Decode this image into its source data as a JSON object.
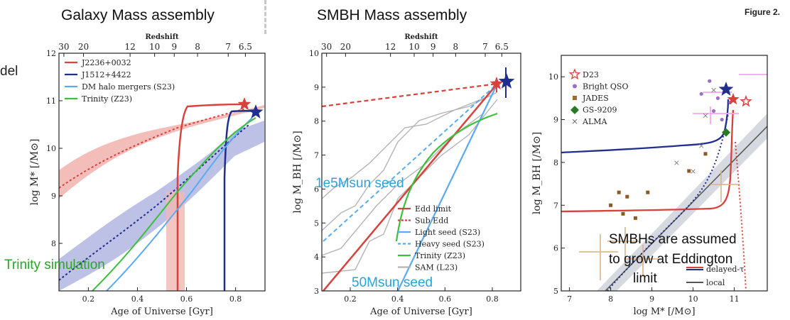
{
  "titles": {
    "left": "Galaxy Mass assembly",
    "mid": "SMBH Mass assembly",
    "figure": "Figure 2."
  },
  "fragment_text": "del",
  "annotations": {
    "trinity_sim": "Trinity simulation",
    "seed_heavy": "1e5Msun seed",
    "seed_light": "50Msun seed",
    "smbh_note_1": "SMBHs are assumed",
    "smbh_note_2": "to grow at Eddington",
    "smbh_note_3": "limit"
  },
  "colors": {
    "red": "#d8413c",
    "navy": "#1f2e8f",
    "lightblue": "#5aaaf0",
    "green": "#3cbf3a",
    "gray": "#b4b4b4",
    "pink": "#f2b7b3",
    "lavender": "#b3b6e2",
    "cyan_text": "#27a3e0",
    "green_text": "#2aa52a"
  },
  "chart_data": [
    {
      "type": "line",
      "xlabel": "Age of Universe [Gyr]",
      "ylabel": "log M* [/M⊙]",
      "top_axis_label": "Redshift",
      "xlim": [
        0.08,
        0.92
      ],
      "ylim": [
        7.0,
        12.0
      ],
      "x_ticks": [
        "0.2",
        "0.4",
        "0.6",
        "0.8"
      ],
      "y_ticks": [
        "8",
        "9",
        "10",
        "11",
        "12"
      ],
      "top_ticks": [
        "30",
        "20",
        "12",
        "10",
        "9",
        "8",
        "7",
        "6.5"
      ],
      "top_tick_x": [
        0.1,
        0.18,
        0.37,
        0.47,
        0.55,
        0.645,
        0.77,
        0.84
      ],
      "legend": [
        "J2236+0032",
        "J1512+4422",
        "DM halo mergers (S23)",
        "Trinity (Z23)"
      ],
      "series": [
        {
          "name": "J2236+0032",
          "x": [
            0.58,
            0.58,
            0.6,
            0.8,
            0.84
          ],
          "y": [
            7.0,
            9.0,
            10.5,
            10.8,
            10.8
          ]
        },
        {
          "name": "J1512+4422",
          "x": [
            0.72,
            0.72,
            0.74,
            0.86,
            0.88
          ],
          "y": [
            7.0,
            9.0,
            10.5,
            10.7,
            10.7
          ]
        },
        {
          "name": "DM halo mergers (S23)",
          "x": [
            0.1,
            0.2,
            0.3,
            0.4,
            0.5,
            0.6,
            0.7,
            0.8
          ],
          "y": [
            7.2,
            7.6,
            8.3,
            8.9,
            9.5,
            9.9,
            10.4,
            10.6
          ]
        },
        {
          "name": "Trinity (Z23)",
          "x": [
            0.2,
            0.3,
            0.4,
            0.5,
            0.6,
            0.7,
            0.8
          ],
          "y": [
            7.2,
            8.0,
            8.8,
            9.5,
            10.0,
            10.4,
            10.6
          ]
        }
      ],
      "markers": [
        {
          "label": "J2236+0032",
          "x": 0.84,
          "y": 10.8
        },
        {
          "label": "J1512+4422",
          "x": 0.88,
          "y": 10.65
        }
      ]
    },
    {
      "type": "line",
      "xlabel": "Age of Universe [Gyr]",
      "ylabel": "log M_BH [/M⊙]",
      "top_axis_label": "Redshift",
      "xlim": [
        0.08,
        0.92
      ],
      "ylim": [
        3.0,
        10.0
      ],
      "x_ticks": [
        "0.2",
        "0.4",
        "0.6",
        "0.8"
      ],
      "y_ticks": [
        "3",
        "4",
        "5",
        "6",
        "7",
        "8",
        "9",
        "10"
      ],
      "top_ticks": [
        "30",
        "20",
        "12",
        "10",
        "9",
        "8",
        "7",
        "6.5"
      ],
      "top_tick_x": [
        0.1,
        0.18,
        0.37,
        0.47,
        0.55,
        0.645,
        0.77,
        0.84
      ],
      "legend": [
        "Edd limit",
        "Sub Edd",
        "Light seed (S23)",
        "Heavy seed (S23)",
        "Trinity (Z23)",
        "SAM (L23)"
      ],
      "series": [
        {
          "name": "Edd limit",
          "x": [
            0.12,
            0.84
          ],
          "y": [
            3.0,
            9.15
          ]
        },
        {
          "name": "Sub Edd",
          "x": [
            0.08,
            0.84
          ],
          "y": [
            8.5,
            9.15
          ]
        },
        {
          "name": "Light seed (S23)",
          "x": [
            0.28,
            0.84
          ],
          "y": [
            3.0,
            9.15
          ]
        },
        {
          "name": "Heavy seed (S23)",
          "x": [
            0.12,
            0.84
          ],
          "y": [
            5.0,
            9.15
          ]
        },
        {
          "name": "Trinity (Z23)",
          "x": [
            0.27,
            0.35,
            0.45,
            0.55,
            0.65,
            0.75
          ],
          "y": [
            4.5,
            6.2,
            7.2,
            7.7,
            8.2,
            8.6
          ]
        }
      ],
      "markers": [
        {
          "label": "J2236+0032",
          "x": 0.84,
          "y": 9.15
        },
        {
          "label": "J1512+4422",
          "x": 0.88,
          "y": 9.25
        }
      ]
    },
    {
      "type": "scatter",
      "xlabel": "log M* [/M⊙]",
      "ylabel": "log M_BH [/M⊙]",
      "xlim": [
        6.8,
        11.8
      ],
      "ylim": [
        5.0,
        10.5
      ],
      "x_ticks": [
        "7",
        "8",
        "9",
        "10",
        "11"
      ],
      "y_ticks": [
        "5",
        "6",
        "7",
        "8",
        "9",
        "10"
      ],
      "legend": [
        "D23",
        "Bright QSO",
        "JADES",
        "GS-9209",
        "ALMA"
      ],
      "legend_lower": [
        "delayed-τ",
        "local"
      ],
      "series": [
        {
          "name": "JADES",
          "x": [
            8.0,
            8.2,
            8.3,
            8.4,
            8.6,
            8.9,
            9.9,
            10.3
          ],
          "y": [
            7.0,
            7.3,
            6.8,
            7.2,
            6.7,
            7.3,
            7.8,
            8.2
          ]
        },
        {
          "name": "Bright QSO",
          "x": [
            10.2,
            10.4,
            10.5,
            10.6,
            10.7,
            10.9
          ],
          "y": [
            9.6,
            9.9,
            9.2,
            9.5,
            9.0,
            9.4
          ]
        },
        {
          "name": "ALMA",
          "x": [
            9.6,
            10.0,
            10.2,
            10.3,
            10.5
          ],
          "y": [
            8.0,
            7.8,
            8.4,
            9.1,
            9.7
          ]
        },
        {
          "name": "GS-9209",
          "x": [
            10.8
          ],
          "y": [
            8.7
          ]
        }
      ],
      "markers": [
        {
          "label": "D23",
          "x": 10.65,
          "y": 9.25
        },
        {
          "label": "D23",
          "x": 10.8,
          "y": 9.15
        }
      ]
    }
  ]
}
